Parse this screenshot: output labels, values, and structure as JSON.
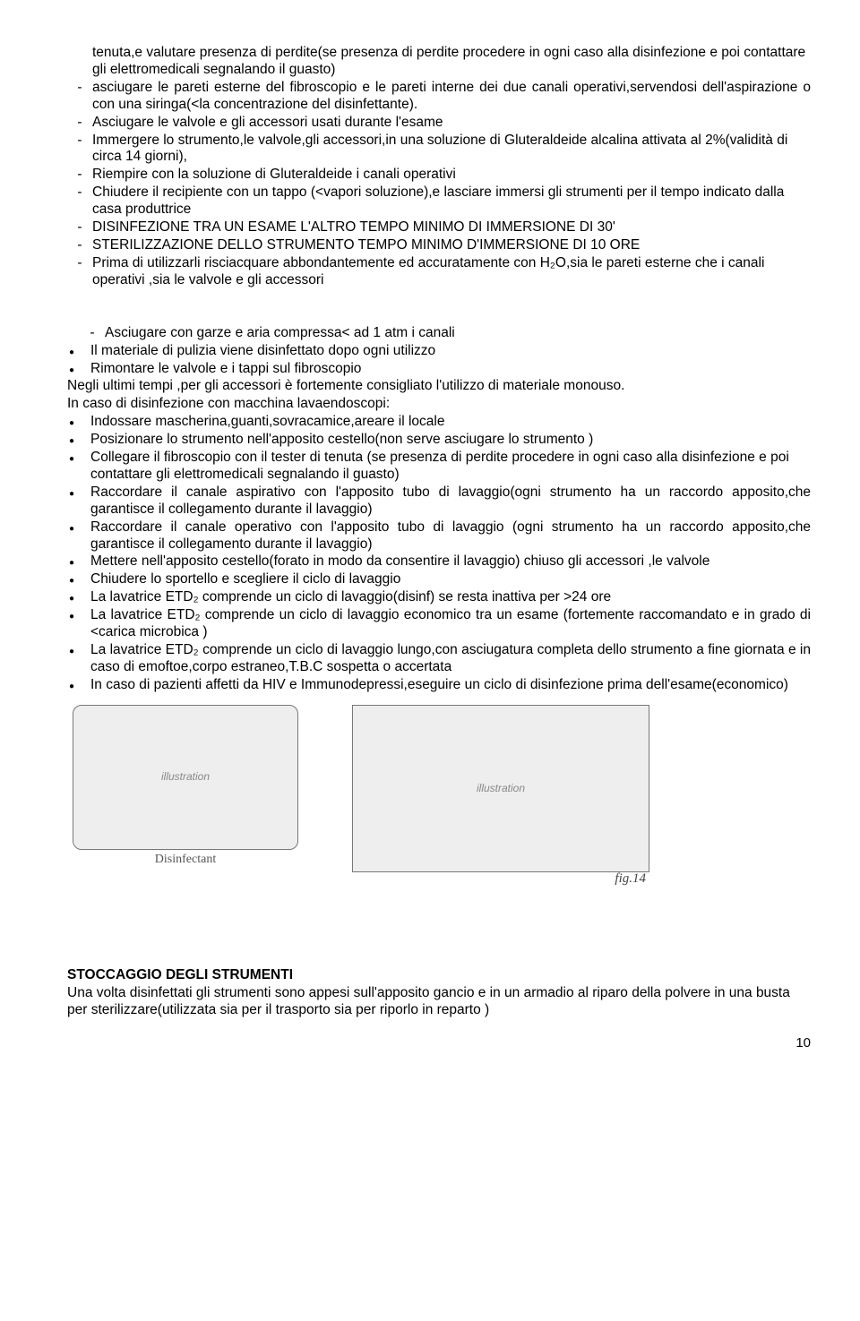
{
  "dashList1": [
    {
      "text": "tenuta,e valutare presenza di perdite(se presenza di perdite procedere in ogni caso alla disinfezione e poi contattare gli elettromedicali segnalando il guasto)",
      "noBullet": true
    },
    {
      "text": "asciugare le pareti esterne del fibroscopio e le pareti interne dei due canali operativi,servendosi dell'aspirazione o con una siringa(<la concentrazione del disinfettante).",
      "justify": true
    },
    {
      "text": "Asciugare le valvole e gli accessori usati durante l'esame"
    },
    {
      "text": "Immergere lo strumento,le valvole,gli accessori,in una soluzione di Gluteraldeide alcalina attivata al 2%(validità di circa 14 giorni),"
    },
    {
      "text": "Riempire con la soluzione di Gluteraldeide i canali operativi"
    },
    {
      "text": "Chiudere il recipiente con un tappo (<vapori soluzione),e lasciare immersi gli strumenti per il tempo indicato  dalla casa produttrice"
    },
    {
      "text": "DISINFEZIONE TRA UN ESAME L'ALTRO TEMPO MINIMO DI IMMERSIONE DI 30'"
    },
    {
      "text": "STERILIZZAZIONE DELLO STRUMENTO TEMPO MINIMO D'IMMERSIONE DI 10 ORE"
    },
    {
      "text": "Prima di utilizzarli risciacquare abbondantemente ed accuratamente con  H₂O,sia le pareti esterne che i canali operativi ,sia le valvole e gli accessori"
    }
  ],
  "dashList2": [
    {
      "text": "Asciugare con garze e aria compressa< ad 1 atm i canali"
    }
  ],
  "dotList1": [
    {
      "text": "Il materiale di pulizia viene disinfettato dopo ogni utilizzo"
    },
    {
      "text": "Rimontare le valvole e i tappi sul fibroscopio"
    }
  ],
  "plain1": "Negli ultimi tempi ,per gli accessori è fortemente consigliato l'utilizzo di materiale monouso.",
  "plain2": "In caso di disinfezione con macchina lavaendoscopi:",
  "dotList2": [
    {
      "text": "Indossare mascherina,guanti,sovracamice,areare il locale"
    },
    {
      "text": "Posizionare lo strumento nell'apposito cestello(non serve asciugare lo strumento )"
    },
    {
      "text": "Collegare il fibroscopio con il tester di tenuta (se presenza di perdite procedere in ogni caso alla disinfezione e poi contattare gli elettromedicali segnalando il guasto)"
    },
    {
      "text": "Raccordare il canale aspirativo con l'apposito tubo di lavaggio(ogni strumento ha un raccordo apposito,che garantisce il collegamento durante il lavaggio)",
      "justify": true
    },
    {
      "text": "Raccordare il canale operativo con l'apposito tubo di lavaggio (ogni strumento ha un raccordo apposito,che garantisce il collegamento durante il lavaggio)",
      "justify": true
    },
    {
      "text": "Mettere nell'apposito cestello(forato in modo da consentire il lavaggio) chiuso gli accessori ,le valvole"
    },
    {
      "text": "Chiudere lo sportello e scegliere il ciclo di lavaggio"
    },
    {
      "text": "La lavatrice ETD₂ comprende un ciclo di lavaggio(disinf) se resta inattiva per >24 ore"
    },
    {
      "text": "La lavatrice ETD₂ comprende un ciclo di lavaggio economico tra un esame (fortemente raccomandato e in grado di <carica microbica )",
      "justify": true
    },
    {
      "text": "La lavatrice ETD₂ comprende un ciclo di lavaggio lungo,con asciugatura completa dello strumento a fine giornata e in caso di emoftoe,corpo estraneo,T.B.C sospetta o accertata",
      "justify": true
    },
    {
      "text": "In caso di pazienti affetti da HIV e Immunodepressi,eseguire un ciclo di disinfezione prima dell'esame(economico)",
      "justify": true
    }
  ],
  "img1": {
    "caption": "Disinfectant",
    "alt": "illustration"
  },
  "img2": {
    "caption": "fig.14",
    "alt": "illustration"
  },
  "heading": "STOCCAGGIO DEGLI STRUMENTI",
  "finalText": "Una volta disinfettati gli strumenti sono appesi sull'apposito gancio e in un armadio al riparo della polvere  in una busta per sterilizzare(utilizzata sia per il trasporto sia per riporlo in reparto )",
  "pageNumber": "10"
}
